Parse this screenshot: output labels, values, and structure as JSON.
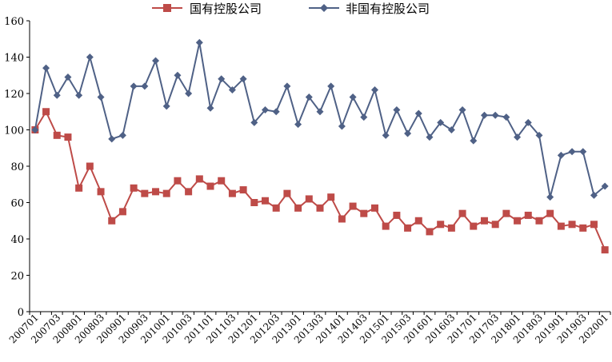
{
  "chart_data": {
    "type": "line",
    "title": "",
    "xlabel": "",
    "ylabel": "",
    "ylim": [
      0,
      160
    ],
    "y_ticks": [
      0,
      20,
      40,
      60,
      80,
      100,
      120,
      140,
      160
    ],
    "grid": false,
    "legend_position": "top-center",
    "categories": [
      "200701",
      "200702",
      "200703",
      "200704",
      "200801",
      "200802",
      "200803",
      "200804",
      "200901",
      "200902",
      "200903",
      "200904",
      "201001",
      "201002",
      "201003",
      "201004",
      "201101",
      "201102",
      "201103",
      "201104",
      "201201",
      "201202",
      "201203",
      "201204",
      "201301",
      "201302",
      "201303",
      "201304",
      "201401",
      "201402",
      "201403",
      "201404",
      "201501",
      "201502",
      "201503",
      "201504",
      "201601",
      "201602",
      "201603",
      "201604",
      "201701",
      "201702",
      "201703",
      "201704",
      "201801",
      "201802",
      "201803",
      "201804",
      "201901",
      "201902",
      "201903",
      "201904",
      "202001"
    ],
    "x_tick_labels": [
      "200701",
      "200703",
      "200801",
      "200803",
      "200901",
      "200903",
      "201001",
      "201003",
      "201101",
      "201103",
      "201201",
      "201203",
      "201301",
      "201303",
      "201401",
      "201403",
      "201501",
      "201503",
      "201601",
      "201603",
      "201701",
      "201703",
      "201801",
      "201803",
      "201901",
      "201903",
      "202001"
    ],
    "series": [
      {
        "name": "国有控股公司",
        "color": "#be4b48",
        "marker": "square",
        "values": [
          100,
          110,
          97,
          96,
          68,
          80,
          66,
          50,
          55,
          68,
          65,
          66,
          65,
          72,
          66,
          73,
          69,
          72,
          65,
          67,
          60,
          61,
          57,
          65,
          57,
          62,
          57,
          63,
          51,
          58,
          54,
          57,
          47,
          53,
          46,
          50,
          44,
          48,
          46,
          54,
          47,
          50,
          48,
          54,
          50,
          53,
          50,
          54,
          47,
          48,
          46,
          48,
          34
        ]
      },
      {
        "name": "非国有控股公司",
        "color": "#4f6186",
        "marker": "diamond",
        "values": [
          100,
          134,
          119,
          129,
          119,
          140,
          118,
          95,
          97,
          124,
          124,
          138,
          113,
          130,
          120,
          148,
          112,
          128,
          122,
          128,
          104,
          111,
          110,
          124,
          103,
          118,
          110,
          124,
          102,
          118,
          107,
          122,
          97,
          111,
          98,
          109,
          96,
          104,
          100,
          111,
          94,
          108,
          108,
          107,
          96,
          104,
          97,
          63,
          86,
          88,
          88,
          64,
          69
        ]
      }
    ]
  }
}
